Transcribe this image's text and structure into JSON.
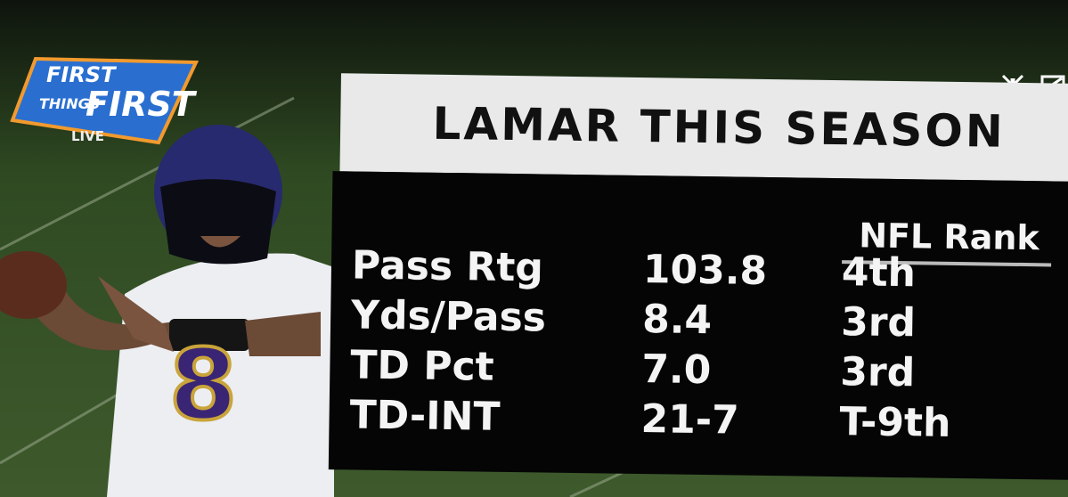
{
  "logo": {
    "lines": [
      "FIRST",
      "THINGS",
      "FIRST"
    ],
    "live": "LIVE"
  },
  "player": {
    "jersey_number": "8"
  },
  "graphic": {
    "title": "LAMAR THIS SEASON",
    "rank_header": "NFL Rank",
    "rows": [
      [
        "Pass Rtg",
        "103.8",
        "4th"
      ],
      [
        "Yds/Pass",
        "8.4",
        "3rd"
      ],
      [
        "TD Pct",
        "7.0",
        "3rd"
      ],
      [
        "TD-INT",
        "21-7",
        "T-9th"
      ]
    ]
  }
}
